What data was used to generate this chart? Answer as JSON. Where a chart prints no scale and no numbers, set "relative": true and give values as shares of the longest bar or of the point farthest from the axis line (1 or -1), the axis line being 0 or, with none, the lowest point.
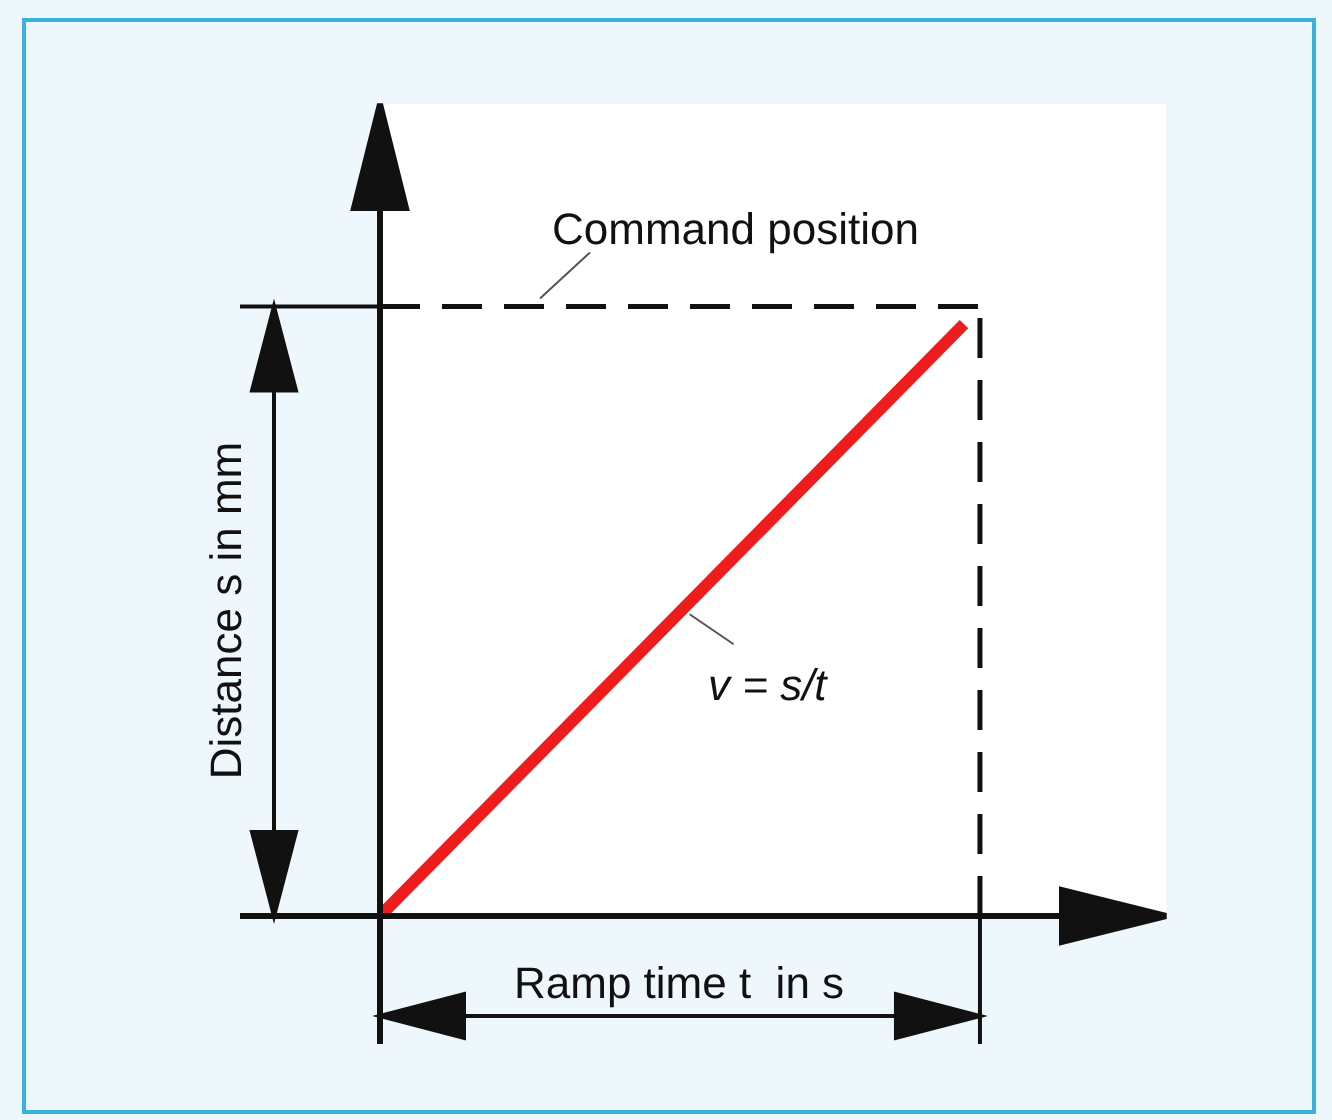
{
  "chart_data": {
    "type": "line",
    "relative": true,
    "xlabel": "Ramp time t  in s",
    "ylabel": "Distance s in mm",
    "categories": [
      null,
      null
    ],
    "series": [
      {
        "color": "#ee1c1c",
        "values": [
          0,
          1
        ]
      }
    ],
    "ref_lines": [
      {
        "axis": "y",
        "value": 1.03,
        "label": "Command position",
        "color": "#111111",
        "line_style": "dashed"
      }
    ],
    "annotations": [
      "v = s/t"
    ]
  }
}
